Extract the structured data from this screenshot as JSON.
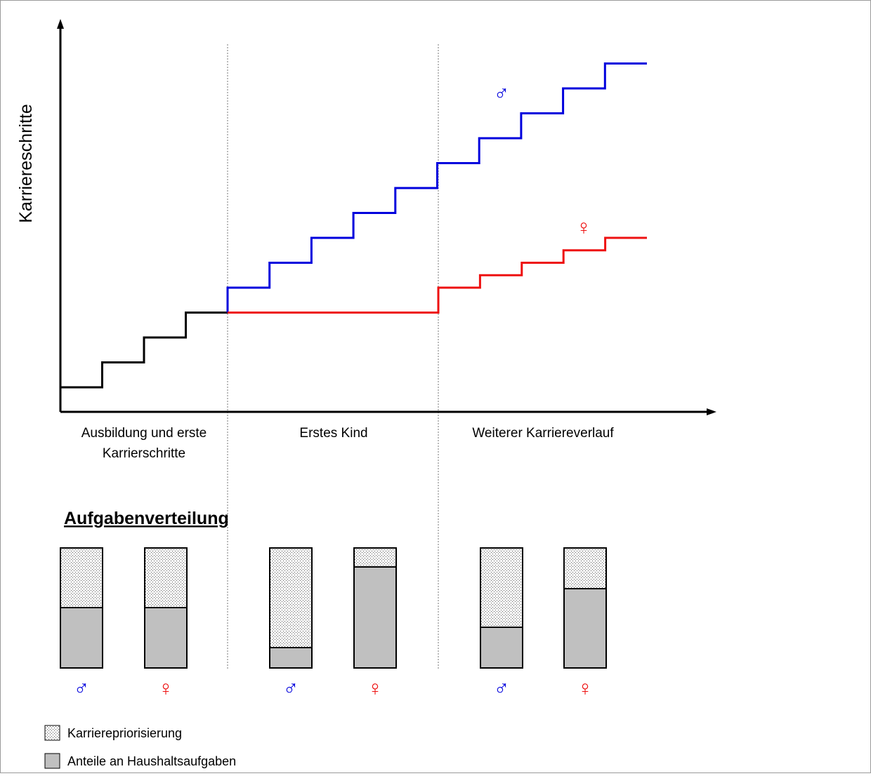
{
  "y_axis_label": "Karriereschritte",
  "phases": [
    {
      "label_line1": "Ausbildung und erste",
      "label_line2": "Karrierschritte"
    },
    {
      "label_line1": "Erstes Kind",
      "label_line2": ""
    },
    {
      "label_line1": "Weiterer Karriereverlauf",
      "label_line2": ""
    }
  ],
  "male_symbol": "♂",
  "female_symbol": "♀",
  "colors": {
    "male": "#0000dd",
    "female": "#ee1111",
    "shared": "#000000",
    "household_fill": "#c0c0c0",
    "divider": "#777777"
  },
  "section_title": "Aufgabenverteilung",
  "legend": {
    "career_priority": "Karrierepriorisierung",
    "household_share": "Anteile an Haushaltsaufgaben"
  },
  "chart_data": {
    "type": "step",
    "career_steps": {
      "shared_levels": [
        0,
        1,
        2,
        3
      ],
      "male_levels": [
        4,
        5,
        6,
        7,
        8,
        9,
        10,
        11,
        12,
        13
      ],
      "female_levels": [
        3,
        4,
        4.5,
        5,
        5.5,
        6
      ]
    },
    "task_distribution": [
      {
        "phase": 1,
        "gender": "male",
        "household_share": 0.5,
        "career_priority_share": 0.5
      },
      {
        "phase": 1,
        "gender": "female",
        "household_share": 0.5,
        "career_priority_share": 0.5
      },
      {
        "phase": 2,
        "gender": "male",
        "household_share": 0.17,
        "career_priority_share": 0.83
      },
      {
        "phase": 2,
        "gender": "female",
        "household_share": 0.84,
        "career_priority_share": 0.16
      },
      {
        "phase": 3,
        "gender": "male",
        "household_share": 0.34,
        "career_priority_share": 0.66
      },
      {
        "phase": 3,
        "gender": "female",
        "household_share": 0.66,
        "career_priority_share": 0.34
      }
    ]
  }
}
